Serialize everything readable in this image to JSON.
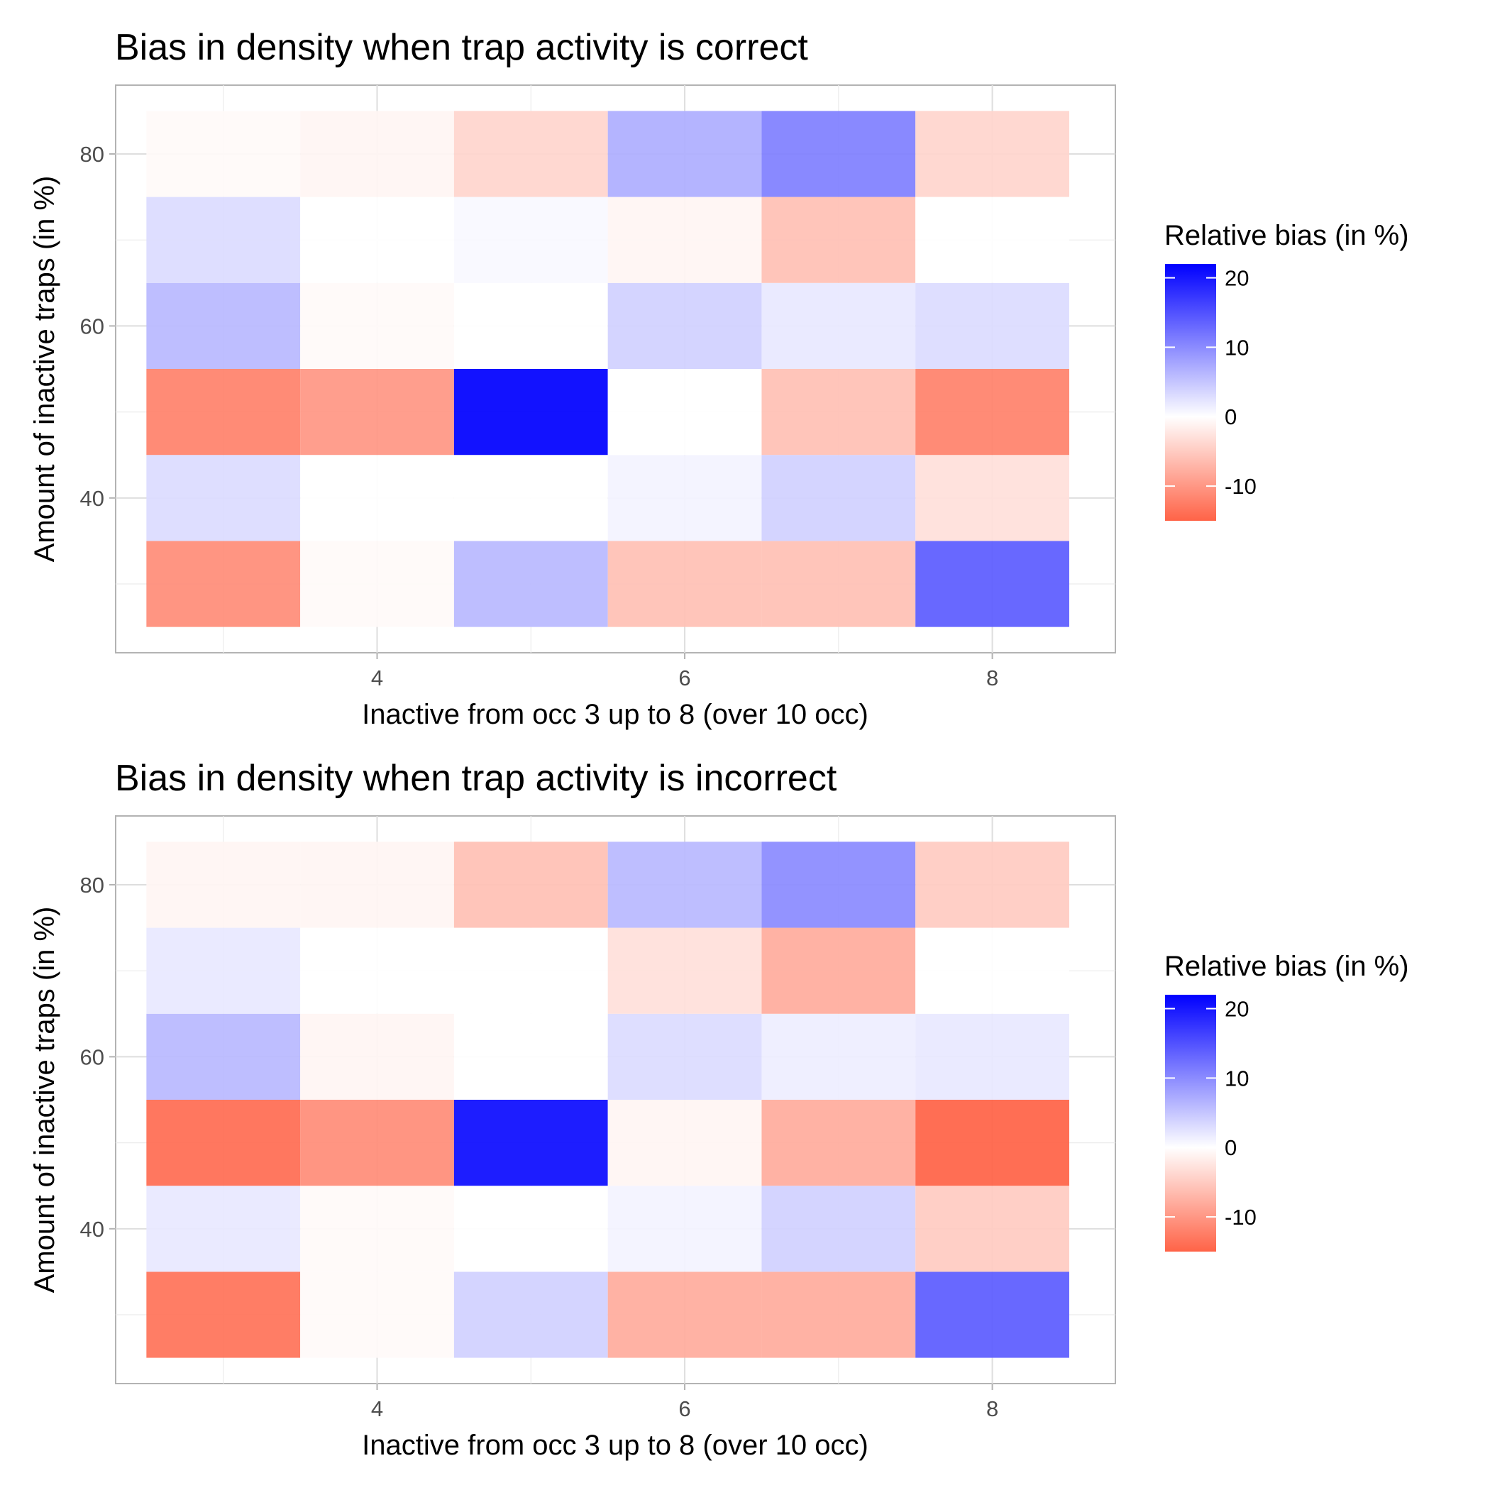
{
  "chart_data": [
    {
      "type": "heatmap",
      "title": "Bias in density when trap activity is correct",
      "xlabel": "Inactive from occ 3 up to 8 (over 10 occ)",
      "ylabel": "Amount of inactive traps (in %)",
      "x": [
        3,
        4,
        5,
        6,
        7,
        8
      ],
      "y": [
        30,
        40,
        50,
        60,
        70,
        80
      ],
      "xticks": [
        4,
        6,
        8
      ],
      "yticks": [
        40,
        60,
        80
      ],
      "xlim": [
        2.3,
        8.8
      ],
      "ylim": [
        22,
        88
      ],
      "values": [
        [
          -11,
          -0.5,
          6,
          -6,
          -6,
          14
        ],
        [
          3,
          0,
          0,
          1,
          4,
          -3
        ],
        [
          -12,
          -10,
          22,
          0,
          -6,
          -12
        ],
        [
          6,
          -0.5,
          0,
          4,
          2,
          3
        ],
        [
          3,
          0,
          0.5,
          -1,
          -6,
          0
        ],
        [
          -0.5,
          -1,
          -4,
          7,
          11,
          -4
        ]
      ],
      "legend": {
        "title": "Relative bias (in %)",
        "ticks": [
          -10,
          0,
          10,
          20
        ],
        "range": [
          -15,
          22
        ],
        "high_color": "#0000ff",
        "mid_color": "#ffffff",
        "low_color": "#ff6347"
      },
      "grid": true
    },
    {
      "type": "heatmap",
      "title": "Bias in density when trap activity is incorrect",
      "xlabel": "Inactive from occ 3 up to 8 (over 10 occ)",
      "ylabel": "Amount of inactive traps (in %)",
      "x": [
        3,
        4,
        5,
        6,
        7,
        8
      ],
      "y": [
        30,
        40,
        50,
        60,
        70,
        80
      ],
      "xticks": [
        4,
        6,
        8
      ],
      "yticks": [
        40,
        60,
        80
      ],
      "xlim": [
        2.3,
        8.8
      ],
      "ylim": [
        22,
        88
      ],
      "values": [
        [
          -13.5,
          -0.5,
          4,
          -8,
          -8,
          14
        ],
        [
          2,
          -0.5,
          0,
          1,
          4,
          -5
        ],
        [
          -14,
          -11,
          21,
          -1,
          -8,
          -15
        ],
        [
          6,
          -1,
          0,
          3,
          1.5,
          2
        ],
        [
          2,
          0,
          0,
          -3,
          -8,
          0
        ],
        [
          -1,
          -1,
          -6,
          6,
          10,
          -5
        ]
      ],
      "legend": {
        "title": "Relative bias (in %)",
        "ticks": [
          -10,
          0,
          10,
          20
        ],
        "range": [
          -15,
          22
        ],
        "high_color": "#0000ff",
        "mid_color": "#ffffff",
        "low_color": "#ff6347"
      },
      "grid": true
    }
  ]
}
